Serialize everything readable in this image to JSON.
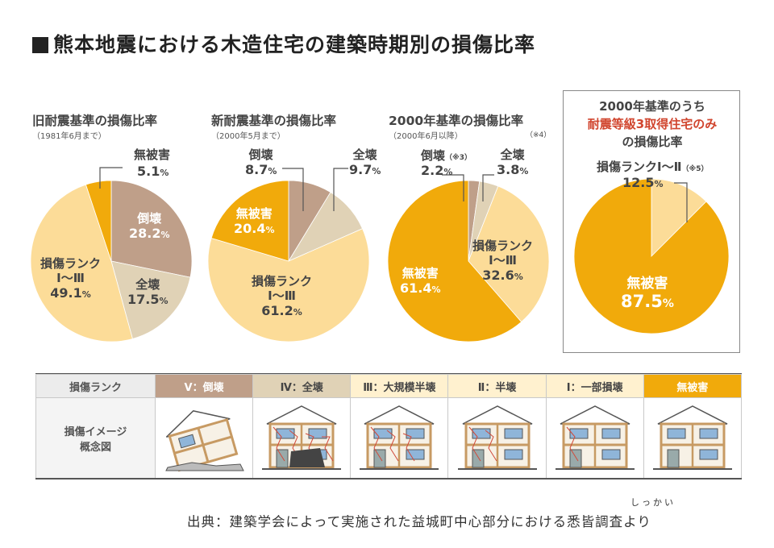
{
  "title": "熊本地震における木造住宅の建築時期別の損傷比率",
  "charts": [
    {
      "title": "旧耐震基準の損傷比率",
      "subtitle": "（1981年6月まで）",
      "note": ""
    },
    {
      "title": "新耐震基準の損傷比率",
      "subtitle": "（2000年5月まで）",
      "note": ""
    },
    {
      "title": "2000年基準の損傷比率",
      "subtitle": "（2000年6月以降）",
      "note": "（※4）"
    },
    {
      "title_line1": "2000年基準のうち",
      "title_line2": "耐震等級3取得住宅のみ",
      "title_line3": "の損傷比率"
    }
  ],
  "labels": {
    "c1": {
      "muhigai": "無被害",
      "muhigai_v": "5.1",
      "toukai": "倒壊",
      "toukai_v": "28.2",
      "zenkai": "全壊",
      "zenkai_v": "17.5",
      "sonsho": "損傷ランク",
      "sonsho2": "Ⅰ～Ⅲ",
      "sonsho_v": "49.1"
    },
    "c2": {
      "toukai": "倒壊",
      "toukai_v": "8.7",
      "zenkai": "全壊",
      "zenkai_v": "9.7",
      "muhigai": "無被害",
      "muhigai_v": "20.4",
      "sonsho": "損傷ランク",
      "sonsho2": "Ⅰ～Ⅲ",
      "sonsho_v": "61.2"
    },
    "c3": {
      "toukai": "倒壊",
      "toukai_note": "（※3）",
      "toukai_v": "2.2",
      "zenkai": "全壊",
      "zenkai_v": "3.8",
      "sonsho": "損傷ランク",
      "sonsho2": "Ⅰ～Ⅲ",
      "sonsho_v": "32.6",
      "muhigai": "無被害",
      "muhigai_v": "61.4"
    },
    "c4": {
      "sonsho": "損傷ランクⅠ～Ⅱ",
      "sonsho_note": "（※5）",
      "sonsho_v": "12.5",
      "muhigai": "無被害",
      "muhigai_v": "87.5"
    }
  },
  "pct": "%",
  "chart_data": [
    {
      "type": "pie",
      "title": "旧耐震基準の損傷比率",
      "slices": [
        {
          "label": "倒壊",
          "value": 28.2,
          "color": "#bf9f89"
        },
        {
          "label": "全壊",
          "value": 17.5,
          "color": "#e0d2b6"
        },
        {
          "label": "損傷ランクⅠ～Ⅲ",
          "value": 49.1,
          "color": "#fcdc98"
        },
        {
          "label": "無被害",
          "value": 5.1,
          "color": "#f1aa0b"
        }
      ]
    },
    {
      "type": "pie",
      "title": "新耐震基準の損傷比率",
      "slices": [
        {
          "label": "倒壊",
          "value": 8.7,
          "color": "#bf9f89"
        },
        {
          "label": "全壊",
          "value": 9.7,
          "color": "#e0d2b6"
        },
        {
          "label": "損傷ランクⅠ～Ⅲ",
          "value": 61.2,
          "color": "#fcdc98"
        },
        {
          "label": "無被害",
          "value": 20.4,
          "color": "#f1aa0b"
        }
      ]
    },
    {
      "type": "pie",
      "title": "2000年基準の損傷比率",
      "slices": [
        {
          "label": "倒壊",
          "value": 2.2,
          "color": "#bf9f89"
        },
        {
          "label": "全壊",
          "value": 3.8,
          "color": "#e0d2b6"
        },
        {
          "label": "損傷ランクⅠ～Ⅲ",
          "value": 32.6,
          "color": "#fcdc98"
        },
        {
          "label": "無被害",
          "value": 61.4,
          "color": "#f1aa0b"
        }
      ]
    },
    {
      "type": "pie",
      "title": "2000年基準のうち耐震等級3取得住宅のみの損傷比率",
      "slices": [
        {
          "label": "損傷ランクⅠ～Ⅱ",
          "value": 12.5,
          "color": "#fcdc98"
        },
        {
          "label": "無被害",
          "value": 87.5,
          "color": "#f1aa0b"
        }
      ]
    }
  ],
  "rank_table": {
    "row1_header": "損傷ランク",
    "row2_header_line1": "損傷イメージ",
    "row2_header_line2": "概念図",
    "columns": [
      {
        "label": "Ⅴ：倒壊",
        "bg": "#bf9f89",
        "fg": "#ffffff",
        "house": "collapsed"
      },
      {
        "label": "Ⅳ：全壊",
        "bg": "#e0d2b6",
        "fg": "#444444",
        "house": "total"
      },
      {
        "label": "Ⅲ：大規模半壊",
        "bg": "#fff1cf",
        "fg": "#444444",
        "house": "major"
      },
      {
        "label": "Ⅱ：半壊",
        "bg": "#fff1cf",
        "fg": "#444444",
        "house": "half"
      },
      {
        "label": "Ⅰ：一部損壊",
        "bg": "#fff1cf",
        "fg": "#444444",
        "house": "partial"
      },
      {
        "label": "無被害",
        "bg": "#f1aa0b",
        "fg": "#ffffff",
        "house": "none"
      }
    ]
  },
  "source": "出典：建築学会によって実施された益城町中心部分における悉皆調査より",
  "source_ruby": "しっかい"
}
